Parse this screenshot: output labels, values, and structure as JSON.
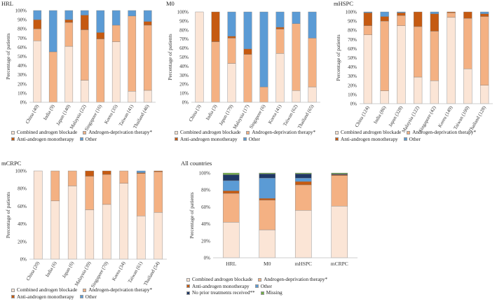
{
  "colors": {
    "cab": "#fbe5d6",
    "adt": "#f4b183",
    "aam": "#c55a11",
    "other": "#5b9bd5",
    "none": "#1f3864",
    "missing": "#70ad47"
  },
  "legend_labels": {
    "cab": "Combined androgen blockade",
    "adt": "Androgen-deprivation therapy*",
    "aam": "Anti-androgen monotherapy",
    "other": "Other",
    "none": "No prior treatments received**",
    "missing": "Missing"
  },
  "chart_data": [
    {
      "type": "bar",
      "stacked": true,
      "title": "HRL",
      "ylabel": "Percentage of patients",
      "ylim": [
        0,
        100
      ],
      "yticks": [
        "0%",
        "10%",
        "20%",
        "30%",
        "40%",
        "50%",
        "60%",
        "70%",
        "80%",
        "90%",
        "100%"
      ],
      "categories": [
        "China (40)",
        "India (9)",
        "Japan (140)",
        "Malaysia (22)",
        "Singapore (16)",
        "Korea (35)",
        "Taiwan (41)",
        "Thailand (46)"
      ],
      "series": [
        {
          "key": "cab",
          "values": [
            67,
            0,
            61,
            24,
            0,
            66,
            12,
            13
          ]
        },
        {
          "key": "adt",
          "values": [
            13,
            55,
            26,
            55,
            69,
            18,
            82,
            71
          ]
        },
        {
          "key": "aam",
          "values": [
            10,
            0,
            3,
            16,
            7,
            0,
            0,
            4
          ]
        },
        {
          "key": "other",
          "values": [
            10,
            45,
            10,
            5,
            24,
            16,
            6,
            12
          ]
        }
      ]
    },
    {
      "type": "bar",
      "stacked": true,
      "title": "M0",
      "ylabel": "Percentage of patients",
      "ylim": [
        0,
        100
      ],
      "yticks": [
        "0%",
        "10%",
        "20%",
        "30%",
        "40%",
        "50%",
        "60%",
        "70%",
        "80%",
        "90%",
        "100%"
      ],
      "categories": [
        "China (3)",
        "India (3)",
        "Japan (179)",
        "Malaysia (17)",
        "Singapore (6)",
        "Korea (41)",
        "Taiwan (62)",
        "Thailand (65)"
      ],
      "series": [
        {
          "key": "cab",
          "values": [
            100,
            0,
            43,
            0,
            0,
            54,
            13,
            17
          ]
        },
        {
          "key": "adt",
          "values": [
            0,
            67,
            28,
            53,
            17,
            27,
            74,
            54
          ]
        },
        {
          "key": "aam",
          "values": [
            0,
            33,
            2,
            6,
            0,
            2,
            0,
            0
          ]
        },
        {
          "key": "other",
          "values": [
            0,
            0,
            27,
            41,
            83,
            17,
            13,
            29
          ]
        }
      ]
    },
    {
      "type": "bar",
      "stacked": true,
      "title": "mHSPC",
      "ylabel": "Percentage of patients",
      "ylim": [
        0,
        100
      ],
      "yticks": [
        "0%",
        "10%",
        "20%",
        "30%",
        "40%",
        "50%",
        "60%",
        "70%",
        "80%",
        "90%",
        "100%"
      ],
      "categories": [
        "China (124)",
        "India (86)",
        "Japan (328)",
        "Malaysia (122)",
        "Singapore (42)",
        "Korea (149)",
        "Taiwan (100)",
        "Thailand (128)"
      ],
      "series": [
        {
          "key": "cab",
          "values": [
            75,
            14,
            85,
            29,
            25,
            94,
            38,
            20
          ]
        },
        {
          "key": "adt",
          "values": [
            10,
            76,
            11,
            55,
            54,
            5,
            55,
            75
          ]
        },
        {
          "key": "aam",
          "values": [
            14,
            5,
            3,
            16,
            19,
            1,
            7,
            3
          ]
        },
        {
          "key": "other",
          "values": [
            1,
            5,
            1,
            0,
            2,
            0,
            0,
            2
          ]
        }
      ]
    },
    {
      "type": "bar",
      "stacked": true,
      "title": "mCRPC",
      "ylabel": "Percentage of patients",
      "ylim": [
        0,
        100
      ],
      "yticks": [
        "0%",
        "20%",
        "40%",
        "60%",
        "80%",
        "100%"
      ],
      "categories": [
        "China (20)",
        "India (6)",
        "Japan (6)",
        "Malaysia (39)",
        "Singapore (70)",
        "Korea (34)",
        "Taiwan (61)",
        "Thailand (54)"
      ],
      "series": [
        {
          "key": "cab",
          "values": [
            100,
            66,
            83,
            56,
            62,
            86,
            49,
            53
          ]
        },
        {
          "key": "adt",
          "values": [
            0,
            34,
            17,
            38,
            34,
            14,
            48,
            46
          ]
        },
        {
          "key": "aam",
          "values": [
            0,
            0,
            0,
            6,
            4,
            0,
            1,
            1
          ]
        },
        {
          "key": "other",
          "values": [
            0,
            0,
            0,
            0,
            0,
            0,
            2,
            0
          ]
        }
      ]
    },
    {
      "type": "bar",
      "stacked": true,
      "title": "All countries",
      "ylabel": "Percentage of patients",
      "ylim": [
        0,
        100
      ],
      "yticks": [
        "0%",
        "20%",
        "40%",
        "60%",
        "80%",
        "100%"
      ],
      "categories": [
        "HRL",
        "M0",
        "mHSPC",
        "mCRPC"
      ],
      "series": [
        {
          "key": "cab",
          "values": [
            42,
            33,
            56,
            61
          ]
        },
        {
          "key": "adt",
          "values": [
            34,
            35,
            30,
            36
          ]
        },
        {
          "key": "aam",
          "values": [
            3,
            2,
            4,
            1
          ]
        },
        {
          "key": "other",
          "values": [
            12,
            24,
            4,
            0
          ]
        },
        {
          "key": "none",
          "values": [
            7,
            5,
            5,
            1
          ]
        },
        {
          "key": "missing",
          "values": [
            2,
            1,
            1,
            1
          ]
        }
      ]
    }
  ]
}
